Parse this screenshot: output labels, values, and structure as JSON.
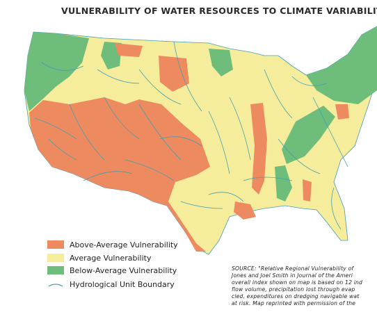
{
  "title": "VULNERABILITY OF WATER RESOURCES TO CLIMATE VARIABILITY",
  "legend": {
    "items": [
      "Above-Average Vulnerability",
      "Average Vulnerability",
      "Below-Average Vulnerability",
      "Hydrological Unit Boundary"
    ]
  },
  "source": {
    "lines": [
      "SOURCE: \"Relative Regional Vulnerability of",
      "Jones and Joel Smith in Journal of the Ameri",
      "overall index shown on map is based on 12 ind",
      "flow volume, precipitation lost through evap",
      "cled, expenditures on dredging navigable wat",
      "at risk. Map reprinted with permission of the"
    ]
  }
}
